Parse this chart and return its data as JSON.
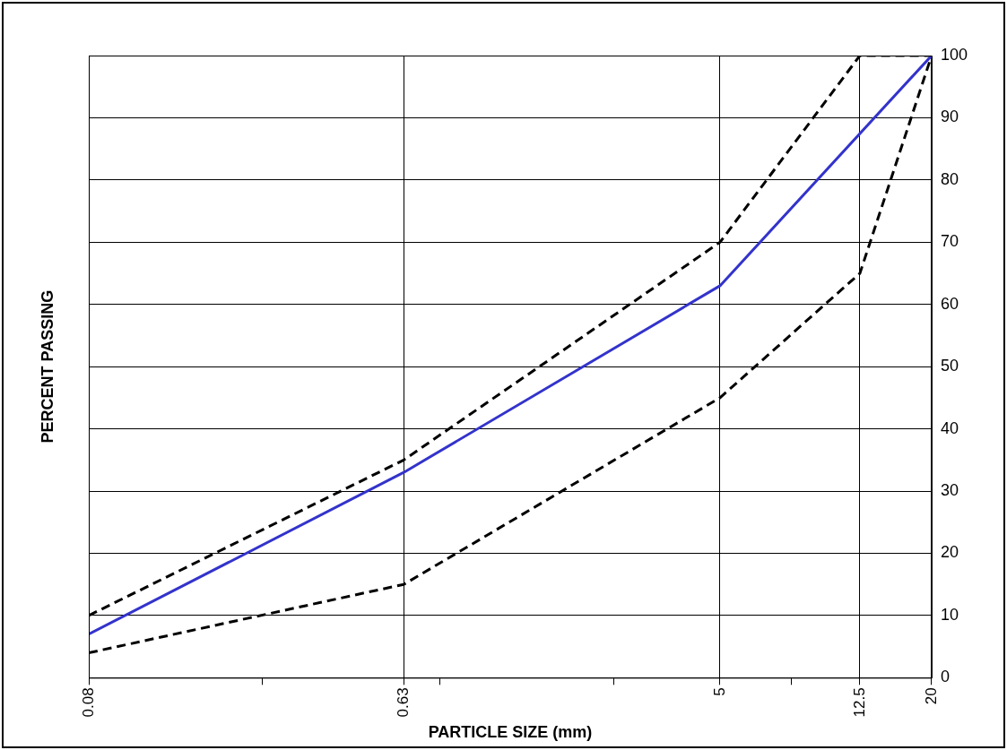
{
  "chart_data": {
    "type": "line",
    "xlabel": "PARTICLE SIZE (mm)",
    "ylabel": "PERCENT PASSING",
    "log": "x",
    "xlim": [
      0.08,
      20
    ],
    "xticks": [
      0.08,
      {
        "value": 0.25,
        "label": null
      },
      0.63,
      {
        "value": 0.8,
        "label": null
      },
      {
        "value": 2.5,
        "label": null
      },
      5,
      {
        "value": 8,
        "label": null
      },
      12.5,
      20
    ],
    "ylim": [
      0,
      100
    ],
    "yticks": [
      0,
      10,
      20,
      30,
      40,
      50,
      60,
      70,
      80,
      90,
      100
    ],
    "grid": true,
    "legend": false,
    "marker": "none",
    "series": [
      {
        "color": "#3333cc",
        "line_style": "solid",
        "x": [
          0.08,
          0.63,
          5,
          20
        ],
        "values": [
          7,
          33,
          63,
          100
        ]
      },
      {
        "color": "#000000",
        "line_style": "dashed",
        "x": [
          0.08,
          0.63,
          5,
          12.5,
          20
        ],
        "values": [
          10,
          35,
          70,
          100,
          100
        ]
      },
      {
        "color": "#000000",
        "line_style": "dashed",
        "x": [
          0.08,
          0.63,
          5,
          12.5,
          20
        ],
        "values": [
          4,
          15,
          45,
          65,
          100
        ]
      }
    ]
  }
}
